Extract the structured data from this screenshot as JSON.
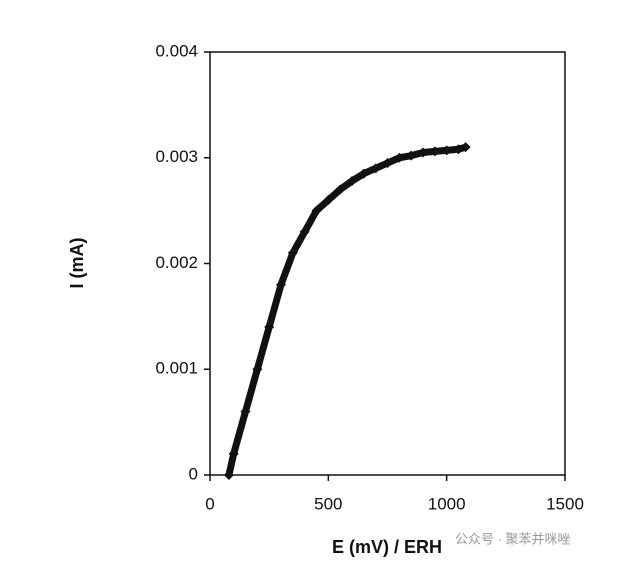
{
  "chart_data": {
    "type": "line",
    "x_label": "E (mV) / ERH",
    "y_label": "I (mA)",
    "x": [
      80,
      100,
      150,
      200,
      250,
      300,
      350,
      400,
      450,
      500,
      550,
      600,
      650,
      700,
      750,
      800,
      850,
      900,
      950,
      1000,
      1050,
      1080
    ],
    "series": [
      {
        "color": "#111111",
        "values": [
          0,
          0.0002,
          0.0006,
          0.001,
          0.0014,
          0.0018,
          0.0021,
          0.0023,
          0.0025,
          0.0026,
          0.0027,
          0.00278,
          0.00285,
          0.0029,
          0.00295,
          0.003,
          0.00302,
          0.00305,
          0.00306,
          0.00307,
          0.00308,
          0.0031
        ]
      }
    ],
    "xlim": [
      0,
      1500
    ],
    "xticks": [
      0,
      500,
      1000,
      1500
    ],
    "ylim": [
      0,
      0.004
    ],
    "yticks": [
      0,
      0.001,
      0.002,
      0.003,
      0.004
    ],
    "grid": false,
    "watermark": "公众号 · 聚苯并咪唑"
  }
}
